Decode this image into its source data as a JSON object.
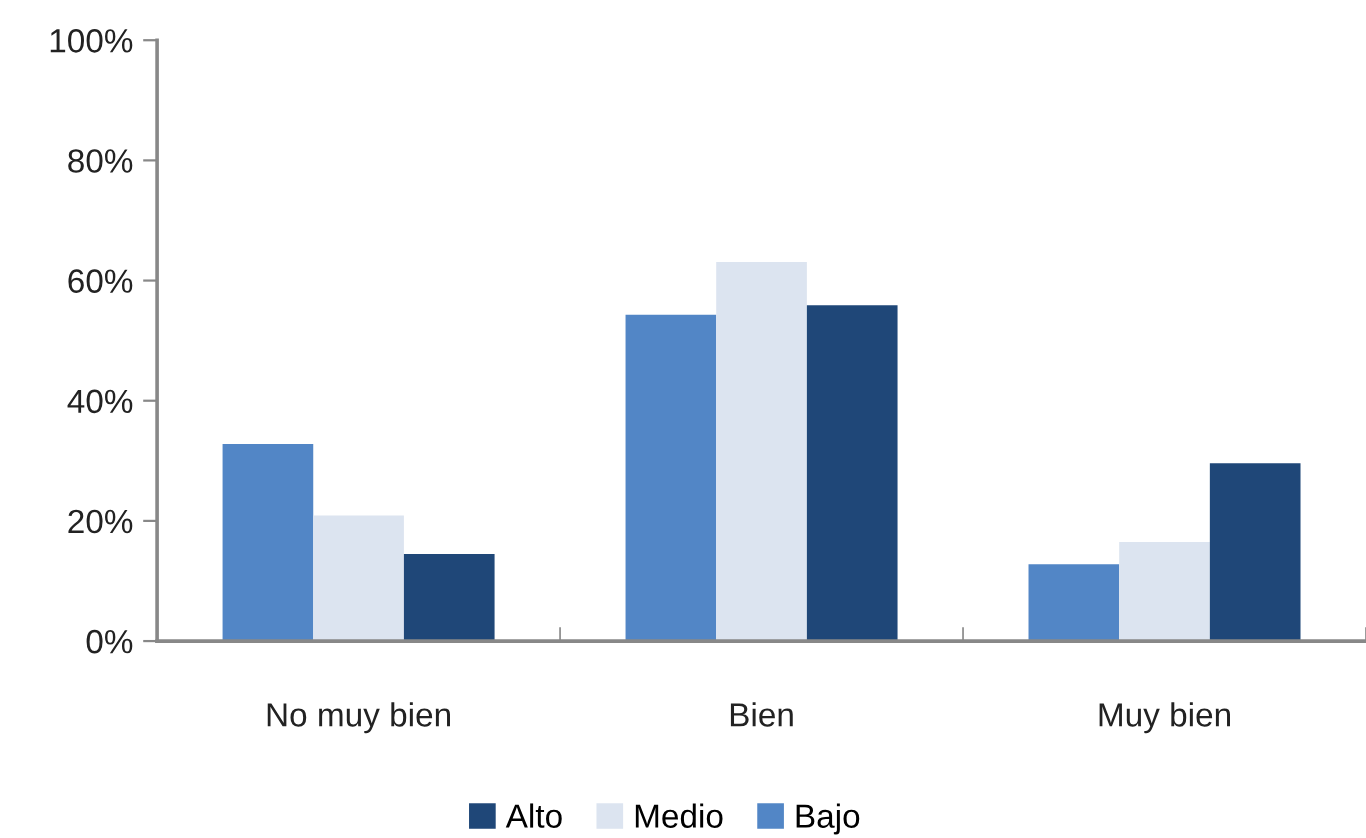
{
  "chart_data": {
    "type": "bar",
    "categories": [
      "No muy bien",
      "Bien",
      "Muy bien"
    ],
    "series": [
      {
        "name": "Bajo",
        "color": "#5286c6",
        "values": [
          32.8,
          54.3,
          12.8
        ]
      },
      {
        "name": "Medio",
        "color": "#dce4f0",
        "values": [
          20.9,
          63.1,
          16.5
        ]
      },
      {
        "name": "Alto",
        "color": "#1f4778",
        "values": [
          14.5,
          55.9,
          29.6
        ]
      }
    ],
    "ylim": [
      0,
      100
    ],
    "yticks": [
      {
        "value": 0,
        "label": "0%"
      },
      {
        "value": 20,
        "label": "20%"
      },
      {
        "value": 40,
        "label": "40%"
      },
      {
        "value": 60,
        "label": "60%"
      },
      {
        "value": 80,
        "label": "80%"
      },
      {
        "value": 100,
        "label": "100%"
      }
    ],
    "grid": false,
    "legend": "bottom"
  }
}
